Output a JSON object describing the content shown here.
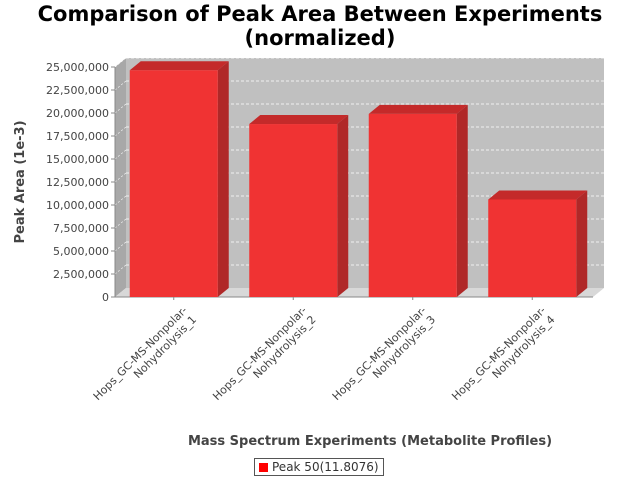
{
  "chart_data": {
    "type": "bar",
    "title_lines": [
      "Comparison of Peak Area Between Experiments",
      "(normalized)"
    ],
    "xlabel": "Mass Spectrum Experiments (Metabolite Profiles)",
    "ylabel": "Peak Area (1e-3)",
    "categories": [
      [
        "Hops_GC-MS-Nonpolar-",
        "Nohydrolysis_1"
      ],
      [
        "Hops_GC-MS-Nonpolar-",
        "Nohydrolysis_2"
      ],
      [
        "Hops_GC-MS-Nonpolar-",
        "Nohydrolysis_3"
      ],
      [
        "Hops_GC-MS-Nonpolar-",
        "Nohydrolysis_4"
      ]
    ],
    "series": [
      {
        "name": "Peak 50(11.8076)",
        "values": [
          24650000,
          18800000,
          19900000,
          10600000
        ]
      }
    ],
    "ylim": [
      0,
      25000000
    ],
    "yticks": [
      0,
      2500000,
      5000000,
      7500000,
      10000000,
      12500000,
      15000000,
      17500000,
      20000000,
      22500000,
      25000000
    ],
    "ytick_labels": [
      "0",
      "2,500,000",
      "5,000,000",
      "7,500,000",
      "10,000,000",
      "12,500,000",
      "15,000,000",
      "17,500,000",
      "20,000,000",
      "22,500,000",
      "25,000,000"
    ],
    "grid": true,
    "legend_position": "bottom",
    "colors": {
      "bar": "#f03333",
      "bar_top": "#c42a2a",
      "bar_side": "#b02828",
      "plot_bg": "#c0c0c0",
      "wall": "#a8a8a8"
    }
  }
}
